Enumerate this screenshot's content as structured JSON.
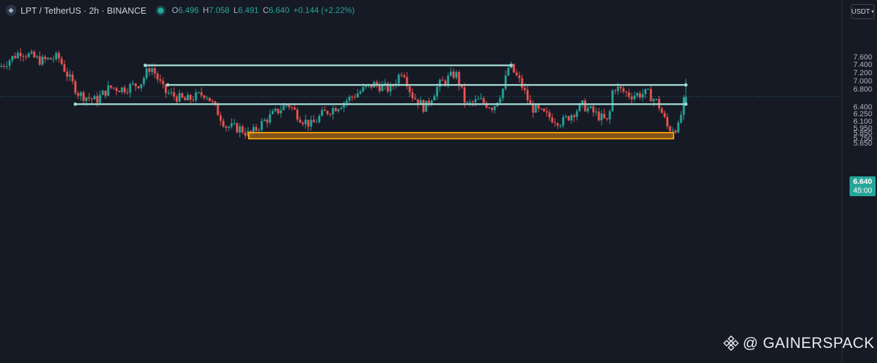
{
  "header": {
    "symbol_title": "LPT / TetherUS · 2h · BINANCE",
    "open_label": "O",
    "open": "6.496",
    "high_label": "H",
    "high": "7.058",
    "low_label": "L",
    "low": "6.491",
    "close_label": "C",
    "close": "6.640",
    "change": "+0.144 (+2.22%)"
  },
  "currency_button": "USDT",
  "last_price": {
    "price": "6.640",
    "countdown": "45:00"
  },
  "watermark": "@ GAINERSPACK",
  "colors": {
    "background": "#161a25",
    "up": "#26a69a",
    "down": "#ef5350",
    "level": "#9fd6d0",
    "zone_fill": "#b87215",
    "zone_border": "#f59e0b"
  },
  "chart_data": {
    "type": "candlestick",
    "symbol": "LPT/USDT",
    "interval": "2h",
    "exchange": "BINANCE",
    "y_axis": {
      "scale": "log",
      "range": [
        5.65,
        7.8
      ],
      "ticks": [
        "7.600",
        "7.400",
        "7.200",
        "7.000",
        "6.800",
        "6.400",
        "6.250",
        "6.100",
        "5.950",
        "5.850",
        "5.750",
        "5.650"
      ]
    },
    "horizontal_levels": [
      7.39,
      6.91,
      6.47
    ],
    "demand_zone": {
      "low": 5.75,
      "high": 5.87
    },
    "last_ohlc": {
      "open": 6.496,
      "high": 7.058,
      "low": 6.491,
      "close": 6.64
    },
    "price_path": [
      [
        0,
        7.35
      ],
      [
        30,
        7.75
      ],
      [
        60,
        7.5
      ],
      [
        85,
        7.6
      ],
      [
        100,
        7.1
      ],
      [
        115,
        6.7
      ],
      [
        140,
        6.55
      ],
      [
        160,
        6.85
      ],
      [
        180,
        6.82
      ],
      [
        205,
        6.95
      ],
      [
        220,
        7.38
      ],
      [
        240,
        6.75
      ],
      [
        270,
        6.55
      ],
      [
        300,
        6.72
      ],
      [
        330,
        6.0
      ],
      [
        350,
        5.95
      ],
      [
        365,
        5.82
      ],
      [
        385,
        6.1
      ],
      [
        420,
        6.48
      ],
      [
        440,
        6.15
      ],
      [
        455,
        6.02
      ],
      [
        470,
        6.25
      ],
      [
        495,
        6.45
      ],
      [
        525,
        6.75
      ],
      [
        545,
        6.93
      ],
      [
        570,
        6.8
      ],
      [
        588,
        7.3
      ],
      [
        600,
        6.7
      ],
      [
        620,
        6.38
      ],
      [
        640,
        6.9
      ],
      [
        665,
        7.2
      ],
      [
        680,
        6.45
      ],
      [
        700,
        6.55
      ],
      [
        720,
        6.4
      ],
      [
        735,
        6.85
      ],
      [
        743,
        7.4
      ],
      [
        760,
        6.95
      ],
      [
        775,
        6.4
      ],
      [
        800,
        6.2
      ],
      [
        820,
        6.08
      ],
      [
        850,
        6.45
      ],
      [
        870,
        6.25
      ],
      [
        888,
        6.07
      ],
      [
        895,
        6.88
      ],
      [
        920,
        6.67
      ],
      [
        945,
        6.72
      ],
      [
        960,
        6.5
      ],
      [
        975,
        5.95
      ],
      [
        990,
        5.98
      ],
      [
        1000,
        6.64
      ]
    ]
  }
}
